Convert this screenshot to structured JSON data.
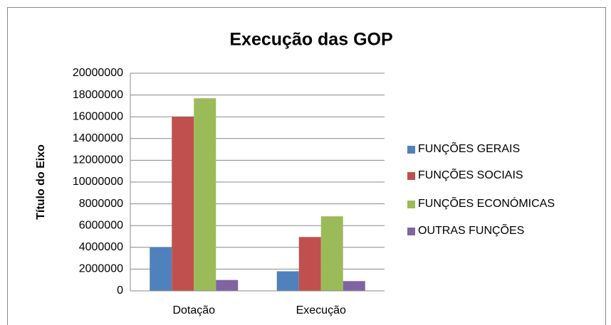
{
  "chart_data": {
    "type": "bar",
    "title": "Execução das GOP",
    "y_label": "Título do Eixo",
    "categories": [
      "Dotação",
      "Execução"
    ],
    "series": [
      {
        "name": "FUNÇÕES GERAIS",
        "color": "#4f81bd",
        "values": [
          4000000,
          1800000
        ]
      },
      {
        "name": "FUNÇÕES SOCIAIS",
        "color": "#c0504d",
        "values": [
          16000000,
          4950000
        ]
      },
      {
        "name": "FUNÇÕES ECONÓMICAS",
        "color": "#9bbb59",
        "values": [
          17700000,
          6850000
        ]
      },
      {
        "name": "OUTRAS FUNÇÕES",
        "color": "#8064a2",
        "values": [
          1000000,
          900000
        ]
      }
    ],
    "ylim": [
      0,
      20000000
    ],
    "yticks": [
      0,
      2000000,
      4000000,
      6000000,
      8000000,
      10000000,
      12000000,
      14000000,
      16000000,
      18000000,
      20000000
    ],
    "grid": true,
    "legend": "right"
  }
}
